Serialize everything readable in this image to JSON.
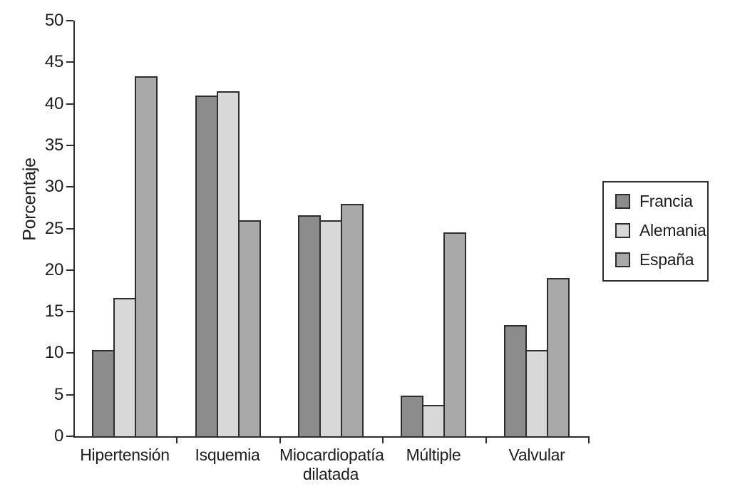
{
  "chart_data": {
    "type": "bar",
    "title": "",
    "xlabel": "",
    "ylabel": "Porcentaje",
    "ylim": [
      0,
      50
    ],
    "ytick_step": 5,
    "ytick_labels": [
      "0",
      "5",
      "10",
      "15",
      "20",
      "25",
      "30",
      "35",
      "40",
      "45",
      "50"
    ],
    "categories": [
      "Hipertensión",
      "Isquemia",
      "Miocardiopatía dilatada",
      "Múltiple",
      "Valvular"
    ],
    "category_display_lines": [
      [
        "Hipertensión"
      ],
      [
        "Isquemia"
      ],
      [
        "Miocardiopatía",
        "dilatada"
      ],
      [
        "Múltiple"
      ],
      [
        "Valvular"
      ]
    ],
    "series": [
      {
        "name": "Francia",
        "color": "#8c8c8c",
        "values": [
          10.4,
          41.0,
          26.6,
          4.9,
          13.4
        ]
      },
      {
        "name": "Alemania",
        "color": "#d8d8d8",
        "values": [
          16.6,
          41.5,
          26.0,
          3.8,
          10.4
        ]
      },
      {
        "name": "España",
        "color": "#a9a9a9",
        "values": [
          43.3,
          26.0,
          28.0,
          24.5,
          19.0
        ]
      }
    ],
    "legend_position": "right",
    "grid": false
  },
  "colors": {
    "background": "#ffffff",
    "axis": "#2d2d2d",
    "text": "#1d1d1d",
    "bar_border": "#2d2d2d",
    "legend_border": "#2d2d2d"
  }
}
